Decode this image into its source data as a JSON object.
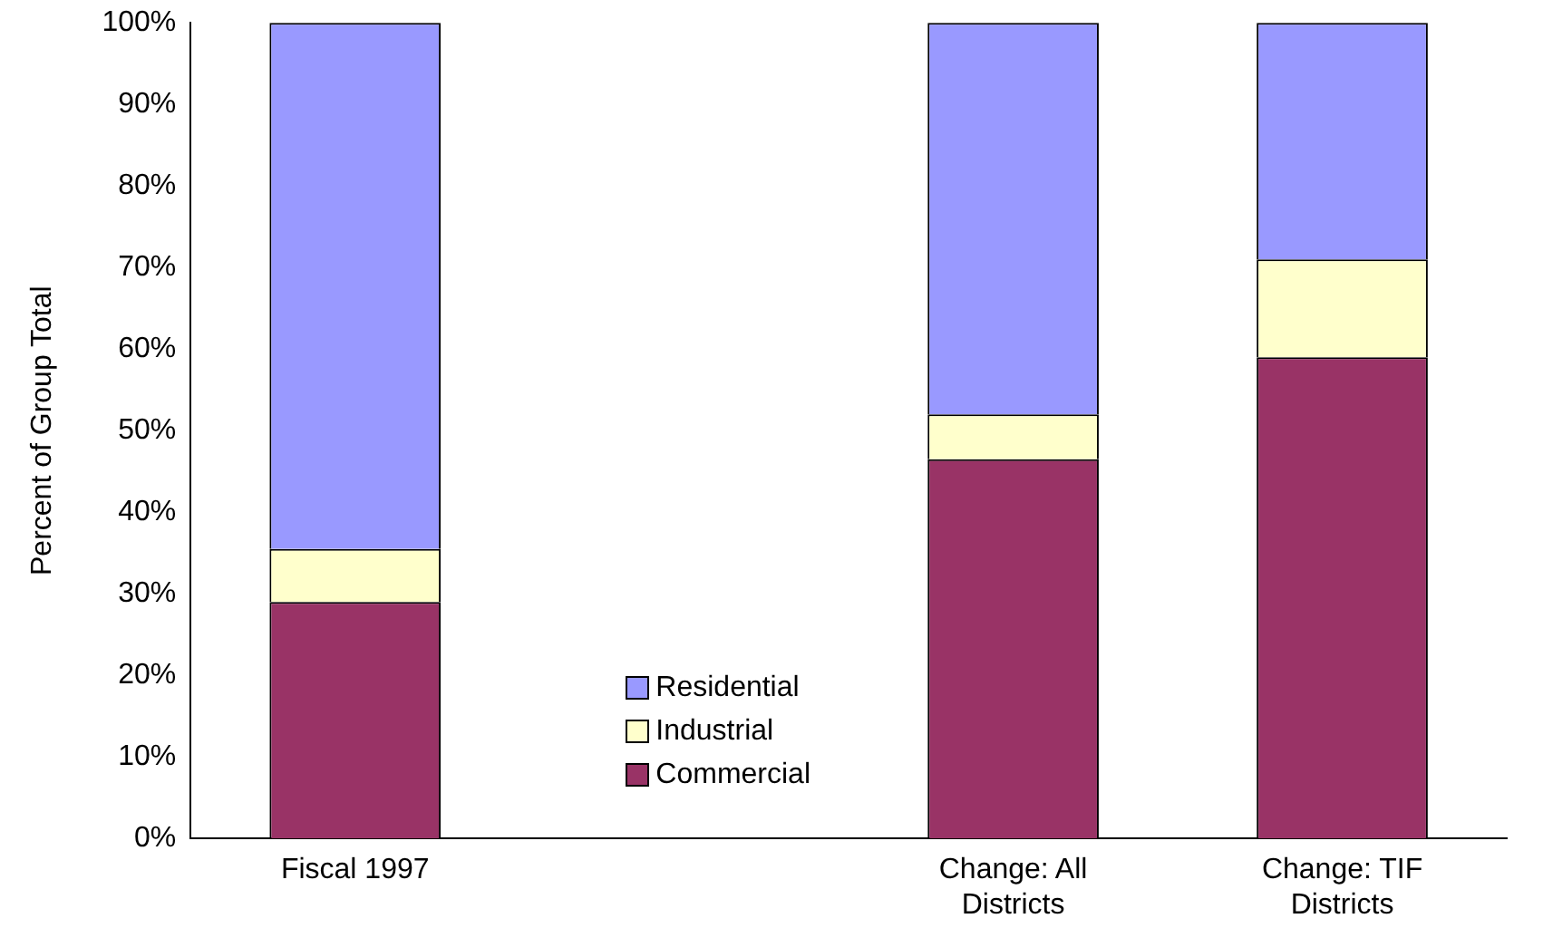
{
  "chart_data": {
    "type": "bar",
    "stacked": true,
    "ylabel": "Percent of Group Total",
    "categories": [
      "Fiscal 1997",
      null,
      "Change: All Districts",
      "Change: TIF Districts"
    ],
    "series": [
      {
        "name": "Commercial",
        "color": "#993366",
        "values": [
          29,
          null,
          46.5,
          59
        ]
      },
      {
        "name": "Industrial",
        "color": "#ffffcc",
        "values": [
          6.5,
          null,
          5.5,
          12
        ]
      },
      {
        "name": "Residential",
        "color": "#9999ff",
        "values": [
          64.5,
          null,
          48,
          29
        ]
      }
    ],
    "ylim": [
      0,
      100
    ],
    "yticks": [
      {
        "value": 0,
        "label": "0%"
      },
      {
        "value": 10,
        "label": "10%"
      },
      {
        "value": 20,
        "label": "20%"
      },
      {
        "value": 30,
        "label": "30%"
      },
      {
        "value": 40,
        "label": "40%"
      },
      {
        "value": 50,
        "label": "50%"
      },
      {
        "value": 60,
        "label": "60%"
      },
      {
        "value": 70,
        "label": "70%"
      },
      {
        "value": 80,
        "label": "80%"
      },
      {
        "value": 90,
        "label": "90%"
      },
      {
        "value": 100,
        "label": "100%"
      }
    ],
    "grid": false,
    "legend": "bottom left"
  }
}
